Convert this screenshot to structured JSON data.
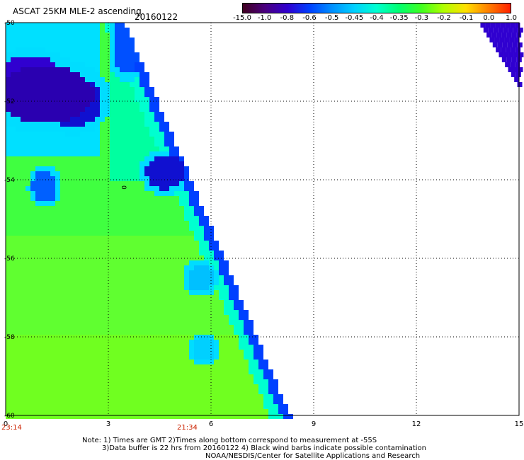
{
  "title": "ASCAT 25KM MLE-2 ascending",
  "date": "20160122",
  "colorbar": {
    "labels": [
      "-15.0",
      "-1.0",
      "-0.8",
      "-0.6",
      "-0.5",
      "-0.45",
      "-0.4",
      "-0.35",
      "-0.3",
      "-0.2",
      "-0.1",
      "0.0",
      "1.0"
    ],
    "colors": [
      "#400020",
      "#4a0080",
      "#3000d0",
      "#0040ff",
      "#0090ff",
      "#00d0ff",
      "#00ffd0",
      "#00ff70",
      "#40ff20",
      "#b0ff00",
      "#ffe000",
      "#ff8000",
      "#ff2000"
    ]
  },
  "axes": {
    "x_ticks": [
      "0",
      "3",
      "6",
      "9",
      "12",
      "15"
    ],
    "y_ticks": [
      "-50",
      "-52",
      "-54",
      "-56",
      "-58",
      "-60"
    ],
    "time_labels": [
      "23:14",
      "21:34"
    ]
  },
  "annotation": "0",
  "notes": [
    "Note: 1) Times are GMT 2)Times along bottom correspond to measurement at -55S",
    "3)Data buffer is 22 hrs from 20160122 4) Black wind barbs indicate possible contamination",
    "NOAA/NESDIS/Center for Satellite Applications and Research"
  ],
  "chart_data": {
    "type": "heatmap",
    "title": "ASCAT 25KM MLE-2 ascending",
    "x_range": [
      0,
      15
    ],
    "y_range": [
      -60,
      -50
    ],
    "grid": true,
    "color_scale": [
      "-15.0",
      "-1.0",
      "-0.8",
      "-0.6",
      "-0.5",
      "-0.45",
      "-0.4",
      "-0.35",
      "-0.3",
      "-0.2",
      "-0.1",
      "0.0",
      "1.0"
    ]
  }
}
